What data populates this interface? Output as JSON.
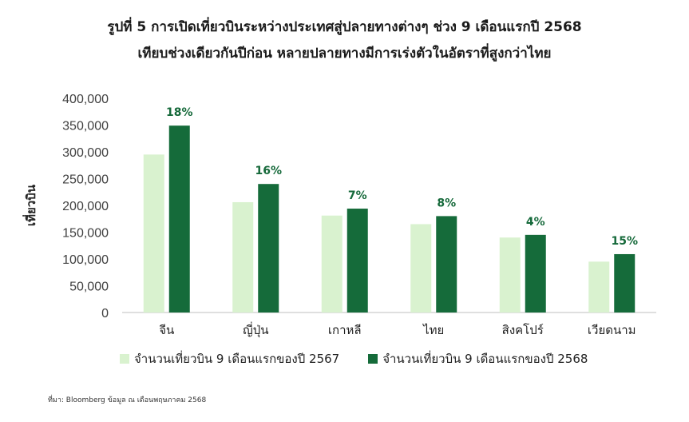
{
  "title_line1": "รูปที่ 5 การเปิดเที่ยวบินระหว่างประเทศสู่ปลายทางต่างๆ ช่วง 9 เดือนแรกปี 2568",
  "title_line2": "เทียบช่วงเดียวกันปีก่อน หลายปลายทางมีการเร่งตัวในอัตราที่สูงกว่าไทย",
  "source": "ที่มา: Bloomberg ข้อมูล ณ เดือนพฤษภาคม 2568",
  "chart_data": {
    "type": "bar",
    "ylabel": "เที่ยวบิน",
    "xlabel": "",
    "ylim": [
      0,
      400000
    ],
    "yticks": [
      "400,000",
      "350,000",
      "300,000",
      "250,000",
      "200,000",
      "150,000",
      "100,000",
      "50,000",
      "0"
    ],
    "categories": [
      "จีน",
      "ญี่ปุ่น",
      "เกาหลี",
      "ไทย",
      "สิงคโปร์",
      "เวียดนาม"
    ],
    "series": [
      {
        "name": "จำนวนเที่ยวบิน 9 เดือนแรกของปี 2567",
        "color": "#d9f2cf",
        "values": [
          295000,
          206000,
          181000,
          165000,
          140000,
          95000
        ]
      },
      {
        "name": "จำนวนเที่ยวบิน 9 เดือนแรกของปี 2568",
        "color": "#156b3a",
        "values": [
          349000,
          240000,
          194000,
          180000,
          145000,
          109000
        ]
      }
    ],
    "growth_labels": [
      "18%",
      "16%",
      "7%",
      "8%",
      "4%",
      "15%"
    ],
    "grid": false,
    "legend_position": "bottom"
  }
}
